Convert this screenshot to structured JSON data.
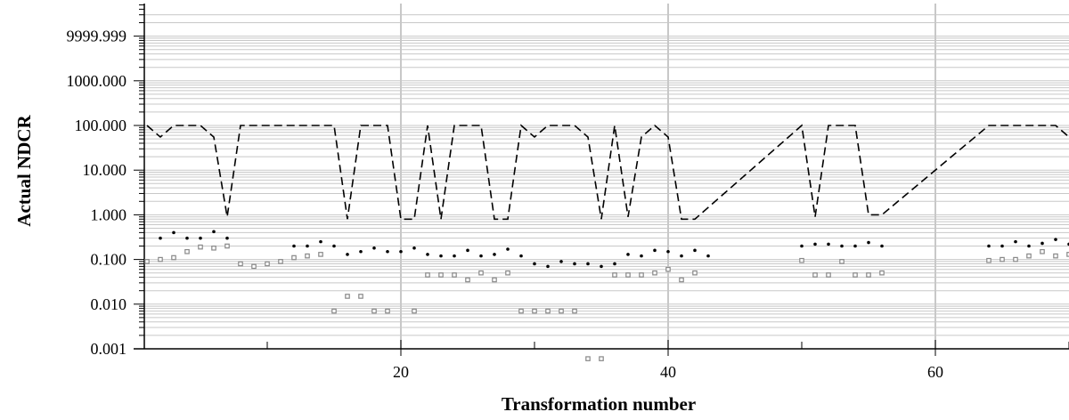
{
  "chart_data": {
    "type": "scatter",
    "title": "",
    "xlabel": "Transformation number",
    "ylabel": "Actual NDCR",
    "y_scale": "log",
    "xlim": [
      1,
      70
    ],
    "ylim": [
      0.001,
      30000
    ],
    "x_ticks": [
      20,
      40,
      60
    ],
    "y_ticks": [
      0.001,
      0.01,
      0.1,
      1,
      10,
      100,
      1000,
      10000
    ],
    "y_tick_labels": [
      "0.001",
      "0.010",
      "0.100",
      "1.000",
      "10.000",
      "100.000",
      "1000.000",
      "9999.999"
    ],
    "grid": {
      "major_x": true,
      "minor_y": true
    },
    "legend": "none",
    "colors": {
      "dashed": "#000000",
      "dots": "#000000",
      "squares": "#888888",
      "grid": "#c8c8c8"
    },
    "series": [
      {
        "style": "dashed-line",
        "points": [
          [
            1,
            100
          ],
          [
            2,
            55
          ],
          [
            3,
            100
          ],
          [
            5,
            100
          ],
          [
            6,
            55
          ],
          [
            7,
            0.9
          ],
          [
            8,
            100
          ],
          [
            9,
            100
          ],
          [
            10,
            100
          ],
          [
            15,
            100
          ],
          [
            16,
            0.8
          ],
          [
            17,
            100
          ],
          [
            18,
            100
          ],
          [
            19,
            100
          ],
          [
            20,
            0.8
          ],
          [
            21,
            0.8
          ],
          [
            22,
            100
          ],
          [
            23,
            0.8
          ],
          [
            24,
            100
          ],
          [
            25,
            100
          ],
          [
            26,
            100
          ],
          [
            27,
            0.8
          ],
          [
            28,
            0.8
          ],
          [
            29,
            100
          ],
          [
            30,
            55
          ],
          [
            31,
            100
          ],
          [
            32,
            100
          ],
          [
            33,
            100
          ],
          [
            34,
            55
          ],
          [
            35,
            0.8
          ],
          [
            36,
            100
          ],
          [
            37,
            0.9
          ],
          [
            38,
            55
          ],
          [
            39,
            100
          ],
          [
            40,
            55
          ],
          [
            41,
            0.8
          ],
          [
            42,
            0.8
          ],
          [
            50,
            100
          ],
          [
            51,
            0.9
          ],
          [
            52,
            100
          ],
          [
            53,
            100
          ],
          [
            54,
            100
          ],
          [
            55,
            1
          ],
          [
            56,
            1
          ],
          [
            64,
            100
          ],
          [
            65,
            100
          ],
          [
            66,
            100
          ],
          [
            67,
            100
          ],
          [
            69,
            100
          ],
          [
            70,
            55
          ]
        ]
      },
      {
        "style": "dots",
        "points": [
          [
            2,
            0.3
          ],
          [
            3,
            0.4
          ],
          [
            4,
            0.3
          ],
          [
            5,
            0.3
          ],
          [
            6,
            0.42
          ],
          [
            7,
            0.3
          ],
          [
            12,
            0.2
          ],
          [
            13,
            0.2
          ],
          [
            14,
            0.25
          ],
          [
            15,
            0.2
          ],
          [
            16,
            0.13
          ],
          [
            17,
            0.15
          ],
          [
            18,
            0.18
          ],
          [
            19,
            0.15
          ],
          [
            20,
            0.15
          ],
          [
            21,
            0.18
          ],
          [
            22,
            0.13
          ],
          [
            23,
            0.12
          ],
          [
            24,
            0.12
          ],
          [
            25,
            0.16
          ],
          [
            26,
            0.12
          ],
          [
            27,
            0.13
          ],
          [
            28,
            0.17
          ],
          [
            29,
            0.12
          ],
          [
            30,
            0.08
          ],
          [
            31,
            0.07
          ],
          [
            32,
            0.09
          ],
          [
            33,
            0.08
          ],
          [
            34,
            0.08
          ],
          [
            35,
            0.07
          ],
          [
            36,
            0.08
          ],
          [
            37,
            0.13
          ],
          [
            38,
            0.12
          ],
          [
            39,
            0.16
          ],
          [
            40,
            0.15
          ],
          [
            41,
            0.12
          ],
          [
            42,
            0.16
          ],
          [
            43,
            0.12
          ],
          [
            50,
            0.2
          ],
          [
            51,
            0.22
          ],
          [
            52,
            0.22
          ],
          [
            53,
            0.2
          ],
          [
            54,
            0.2
          ],
          [
            55,
            0.24
          ],
          [
            56,
            0.2
          ],
          [
            64,
            0.2
          ],
          [
            65,
            0.2
          ],
          [
            66,
            0.25
          ],
          [
            67,
            0.2
          ],
          [
            68,
            0.23
          ],
          [
            69,
            0.28
          ],
          [
            70,
            0.22
          ]
        ]
      },
      {
        "style": "squares",
        "points": [
          [
            1,
            0.09
          ],
          [
            2,
            0.1
          ],
          [
            3,
            0.11
          ],
          [
            4,
            0.15
          ],
          [
            5,
            0.19
          ],
          [
            6,
            0.18
          ],
          [
            7,
            0.2
          ],
          [
            8,
            0.08
          ],
          [
            9,
            0.07
          ],
          [
            10,
            0.08
          ],
          [
            11,
            0.09
          ],
          [
            12,
            0.11
          ],
          [
            13,
            0.12
          ],
          [
            14,
            0.13
          ],
          [
            15,
            0.007
          ],
          [
            16,
            0.015
          ],
          [
            17,
            0.015
          ],
          [
            18,
            0.007
          ],
          [
            19,
            0.007
          ],
          [
            21,
            0.007
          ],
          [
            22,
            0.045
          ],
          [
            23,
            0.045
          ],
          [
            24,
            0.045
          ],
          [
            25,
            0.035
          ],
          [
            26,
            0.05
          ],
          [
            27,
            0.035
          ],
          [
            28,
            0.05
          ],
          [
            29,
            0.007
          ],
          [
            30,
            0.007
          ],
          [
            31,
            0.007
          ],
          [
            32,
            0.007
          ],
          [
            33,
            0.007
          ],
          [
            34,
            0.0006
          ],
          [
            35,
            0.0006
          ],
          [
            36,
            0.045
          ],
          [
            37,
            0.045
          ],
          [
            38,
            0.045
          ],
          [
            39,
            0.05
          ],
          [
            40,
            0.06
          ],
          [
            41,
            0.035
          ],
          [
            42,
            0.05
          ],
          [
            50,
            0.095
          ],
          [
            51,
            0.045
          ],
          [
            52,
            0.045
          ],
          [
            53,
            0.09
          ],
          [
            54,
            0.045
          ],
          [
            55,
            0.045
          ],
          [
            56,
            0.05
          ],
          [
            64,
            0.095
          ],
          [
            65,
            0.1
          ],
          [
            66,
            0.1
          ],
          [
            67,
            0.12
          ],
          [
            68,
            0.15
          ],
          [
            69,
            0.12
          ],
          [
            70,
            0.13
          ]
        ]
      }
    ]
  }
}
